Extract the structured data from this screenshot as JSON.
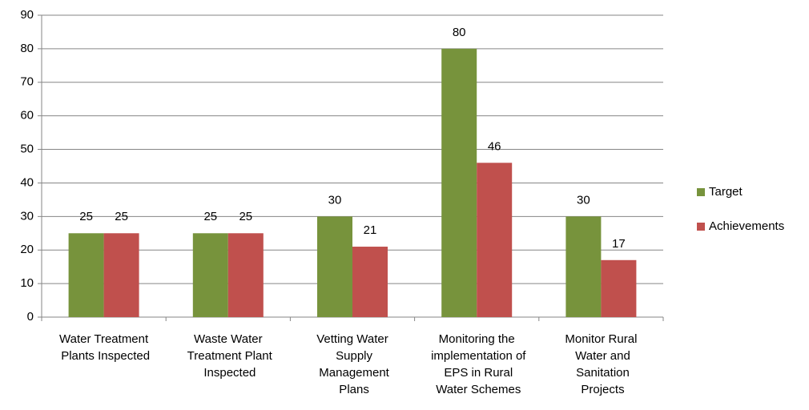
{
  "chart_data": {
    "type": "bar",
    "categories": [
      "Water Treatment Plants Inspected",
      "Waste Water Treatment Plant Inspected",
      "Vetting Water Supply Management Plans",
      "Monitoring the implementation of EPS in Rural Water Schemes",
      "Monitor Rural Water and Sanitation Projects"
    ],
    "series": [
      {
        "name": "Target",
        "color": "#77933c",
        "values": [
          25,
          25,
          30,
          80,
          30
        ]
      },
      {
        "name": "Achievements",
        "color": "#c0504d",
        "values": [
          25,
          25,
          21,
          46,
          17
        ]
      }
    ],
    "ylim": [
      0,
      90
    ],
    "yticks": [
      0,
      10,
      20,
      30,
      40,
      50,
      60,
      70,
      80,
      90
    ],
    "grid": true,
    "legend": "right"
  }
}
